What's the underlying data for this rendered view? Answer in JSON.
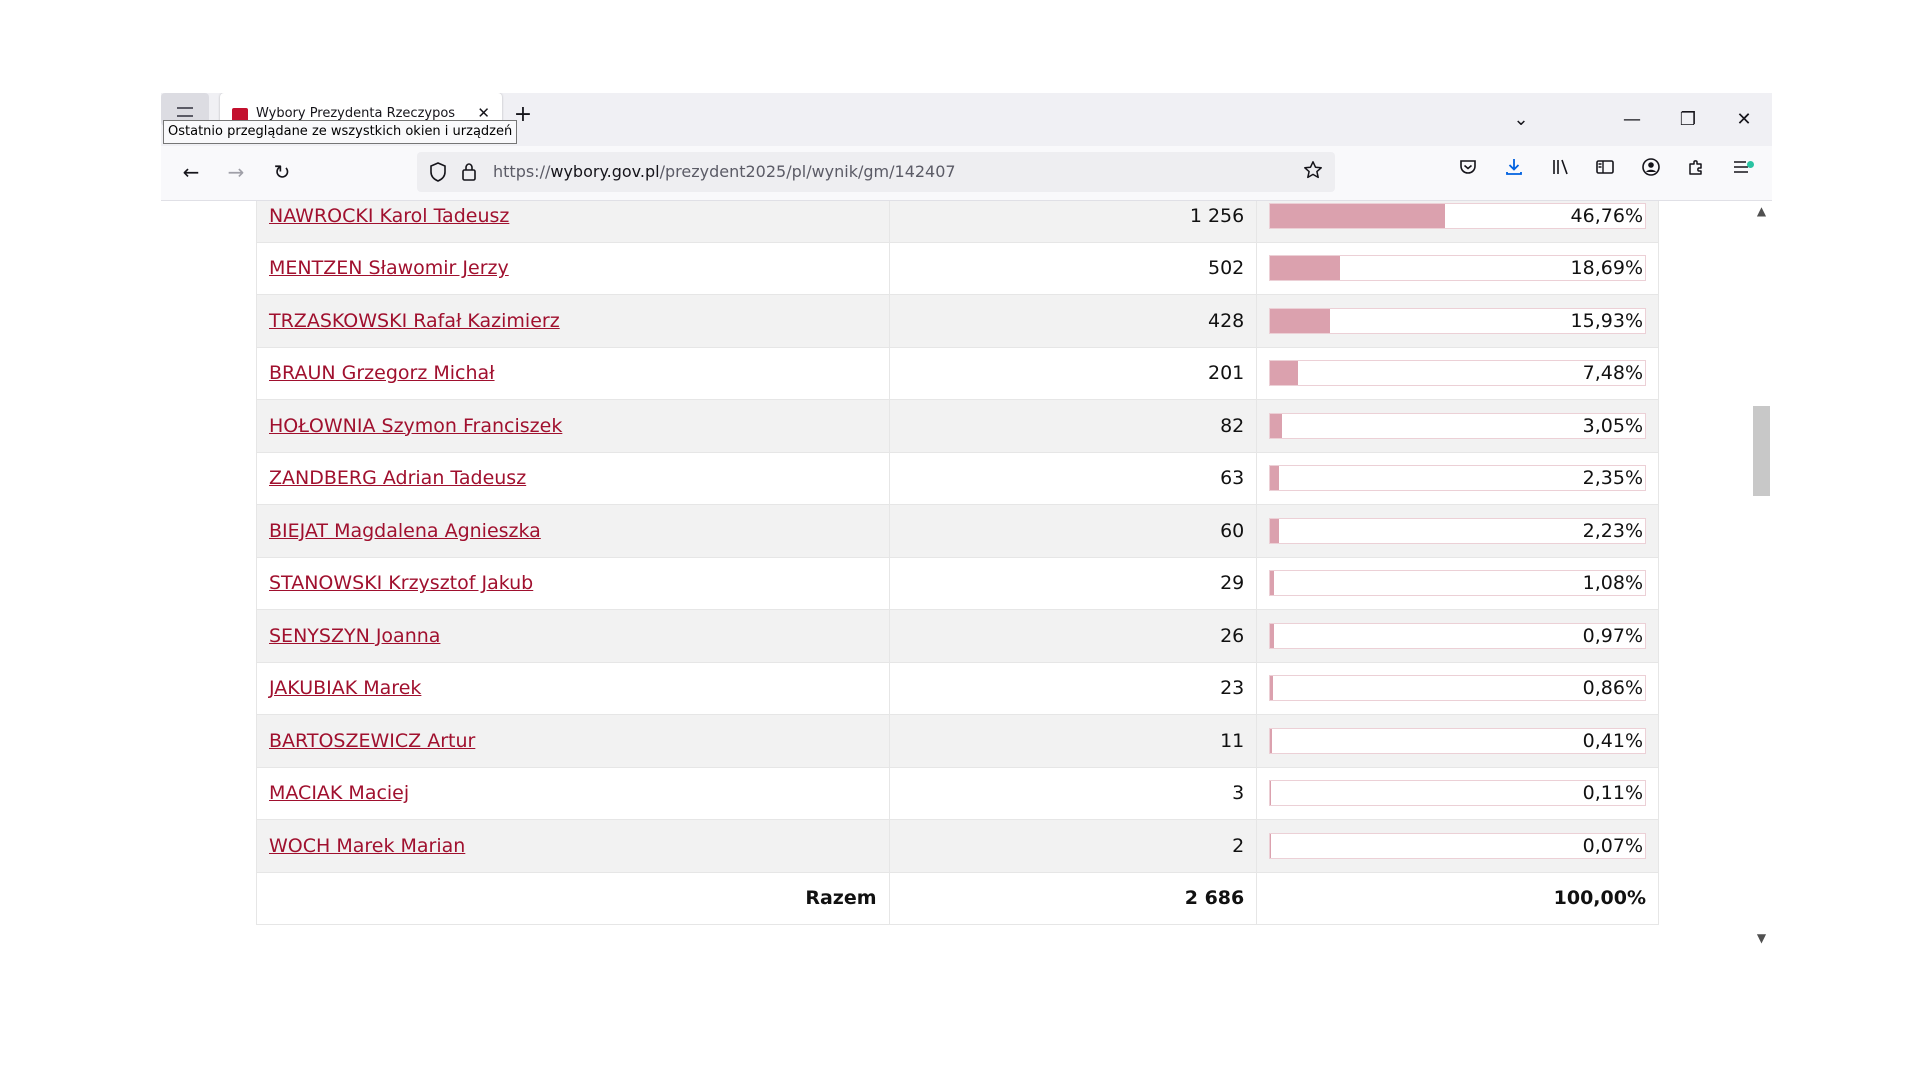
{
  "browser": {
    "tab_title": "Wybory Prezydenta Rzeczypospolitej",
    "tab_close": "✕",
    "new_tab": "+",
    "tooltip": "Ostatnio przeglądane ze wszystkich okien i urządzeń",
    "window_controls": {
      "minimize": "—",
      "maximize": "❐",
      "close": "✕",
      "list_tabs": "⌄"
    },
    "nav": {
      "back": "←",
      "forward": "→",
      "reload": "↻"
    },
    "url": {
      "prefix": "https://",
      "domain": "wybory.gov.pl",
      "path": "/prezydent2025/pl/wynik/gm/142407"
    },
    "icons": [
      "shield-icon",
      "lock-icon",
      "bookmark-star-icon",
      "pocket-icon",
      "downloads-icon",
      "library-icon",
      "sidebar-icon",
      "account-icon",
      "extensions-icon",
      "menu-icon"
    ],
    "accent_color": "#0061e0"
  },
  "results": {
    "candidates": [
      {
        "name": "NAWROCKI Karol Tadeusz",
        "votes": "1 256",
        "percent": "46,76%",
        "share": 46.76
      },
      {
        "name": "MENTZEN Sławomir Jerzy",
        "votes": "502",
        "percent": "18,69%",
        "share": 18.69
      },
      {
        "name": "TRZASKOWSKI Rafał Kazimierz",
        "votes": "428",
        "percent": "15,93%",
        "share": 15.93
      },
      {
        "name": "BRAUN Grzegorz Michał",
        "votes": "201",
        "percent": "7,48%",
        "share": 7.48
      },
      {
        "name": "HOŁOWNIA Szymon Franciszek",
        "votes": "82",
        "percent": "3,05%",
        "share": 3.05
      },
      {
        "name": "ZANDBERG Adrian Tadeusz",
        "votes": "63",
        "percent": "2,35%",
        "share": 2.35
      },
      {
        "name": "BIEJAT Magdalena Agnieszka",
        "votes": "60",
        "percent": "2,23%",
        "share": 2.23
      },
      {
        "name": "STANOWSKI Krzysztof Jakub",
        "votes": "29",
        "percent": "1,08%",
        "share": 1.08
      },
      {
        "name": "SENYSZYN Joanna",
        "votes": "26",
        "percent": "0,97%",
        "share": 0.97
      },
      {
        "name": "JAKUBIAK Marek",
        "votes": "23",
        "percent": "0,86%",
        "share": 0.86
      },
      {
        "name": "BARTOSZEWICZ Artur",
        "votes": "11",
        "percent": "0,41%",
        "share": 0.41
      },
      {
        "name": "MACIAK Maciej",
        "votes": "3",
        "percent": "0,11%",
        "share": 0.11
      },
      {
        "name": "WOCH Marek Marian",
        "votes": "2",
        "percent": "0,07%",
        "share": 0.07
      }
    ],
    "total": {
      "label": "Razem",
      "votes": "2 686",
      "percent": "100,00%"
    },
    "link_color": "#a0102e",
    "bar_color": "#dba1ae"
  }
}
